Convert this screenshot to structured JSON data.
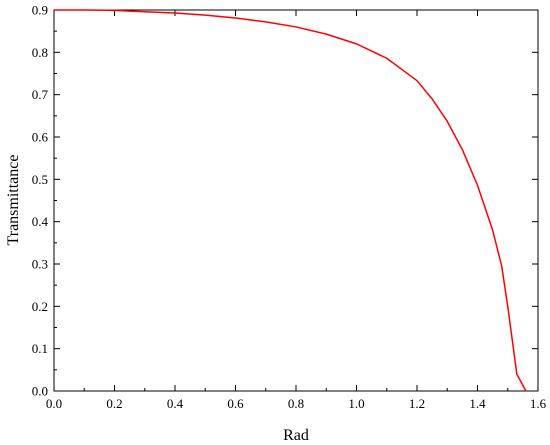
{
  "chart_data": {
    "type": "line",
    "title": "",
    "xlabel": "Rad",
    "ylabel": "Transmittance",
    "xlim": [
      0.0,
      1.6
    ],
    "ylim": [
      0.0,
      0.9
    ],
    "x_ticks": [
      "0.0",
      "0.2",
      "0.4",
      "0.6",
      "0.8",
      "1.0",
      "1.2",
      "1.4",
      "1.6"
    ],
    "y_ticks": [
      "0.0",
      "0.1",
      "0.2",
      "0.3",
      "0.4",
      "0.5",
      "0.6",
      "0.7",
      "0.8",
      "0.9"
    ],
    "grid": false,
    "legend": "none",
    "series": [
      {
        "color": "#ff0000",
        "x": [
          0.0,
          0.1,
          0.2,
          0.3,
          0.4,
          0.5,
          0.6,
          0.7,
          0.8,
          0.9,
          1.0,
          1.1,
          1.2,
          1.25,
          1.3,
          1.35,
          1.4,
          1.45,
          1.48,
          1.5,
          1.53,
          1.56
        ],
        "y": [
          0.9,
          0.9,
          0.899,
          0.896,
          0.893,
          0.888,
          0.881,
          0.872,
          0.86,
          0.843,
          0.82,
          0.786,
          0.733,
          0.69,
          0.637,
          0.57,
          0.486,
          0.38,
          0.295,
          0.2,
          0.04,
          0.0
        ]
      }
    ]
  }
}
